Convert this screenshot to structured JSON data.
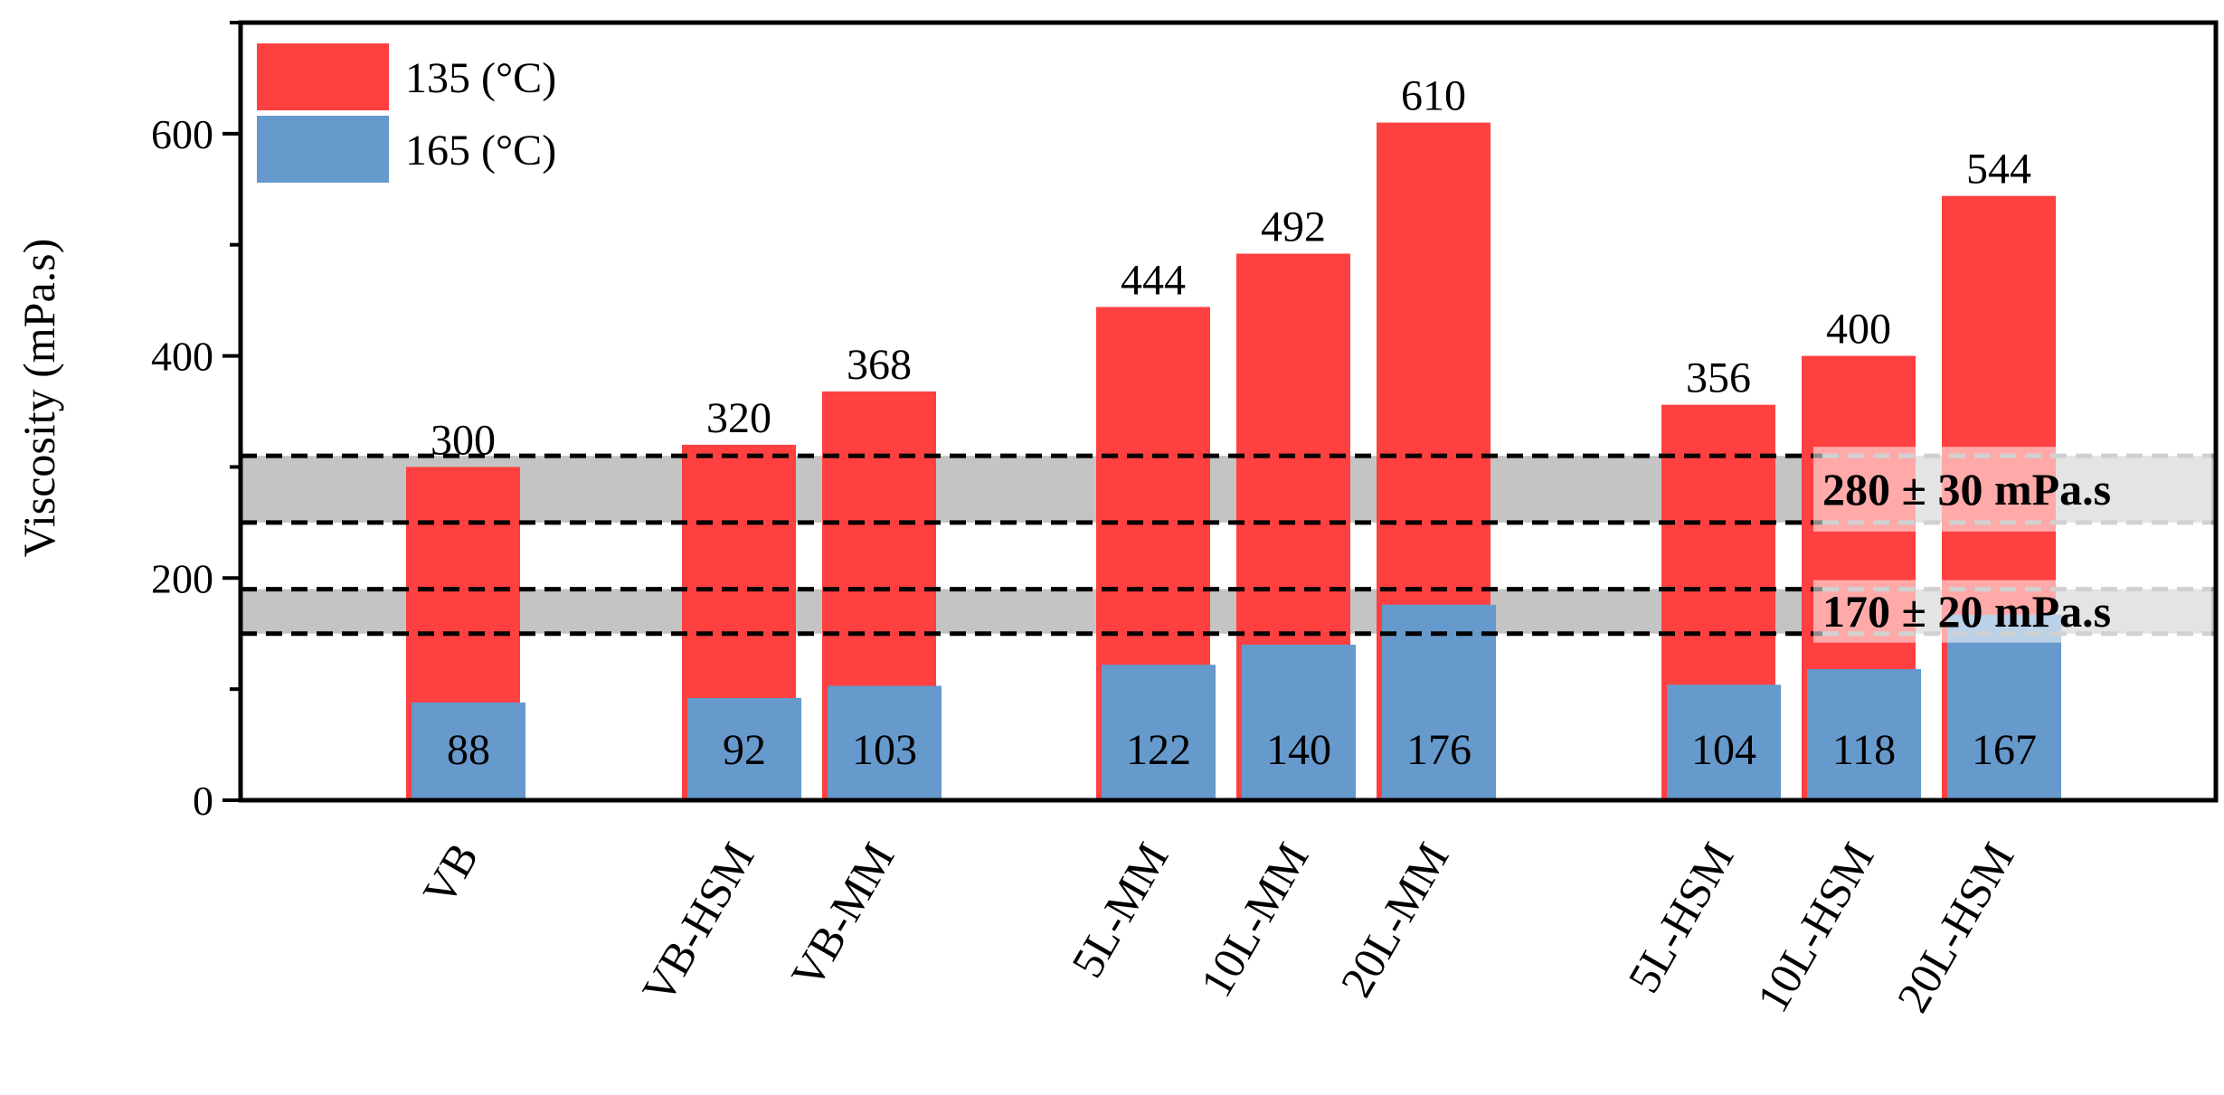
{
  "chart_data": {
    "type": "bar",
    "title": "",
    "xlabel": "",
    "ylabel": "Viscosity (mPa.s)",
    "ylim": [
      0,
      700
    ],
    "yticks": [
      0,
      200,
      400,
      600
    ],
    "grid": false,
    "legend_position": "top-left",
    "categories": [
      "VB",
      "VB-HSM",
      "VB-MM",
      "5L-MM",
      "10L-MM",
      "20L-MM",
      "5L-HSM",
      "10L-HSM",
      "20L-HSM"
    ],
    "category_groups": [
      [
        "VB"
      ],
      [
        "VB-HSM",
        "VB-MM"
      ],
      [
        "5L-MM",
        "10L-MM",
        "20L-MM"
      ],
      [
        "5L-HSM",
        "10L-HSM",
        "20L-HSM"
      ]
    ],
    "series": [
      {
        "name": "135 (°C)",
        "color": "#ff4040",
        "values": [
          300,
          320,
          368,
          444,
          492,
          610,
          356,
          400,
          544
        ]
      },
      {
        "name": "165 (°C)",
        "color": "#6699cc",
        "values": [
          88,
          92,
          103,
          122,
          140,
          176,
          104,
          118,
          167
        ]
      }
    ],
    "reference_bands": [
      {
        "label": "280 ± 30 mPa.s",
        "center": 280,
        "half_width": 30
      },
      {
        "label": "170 ± 20 mPa.s",
        "center": 170,
        "half_width": 20
      }
    ]
  }
}
